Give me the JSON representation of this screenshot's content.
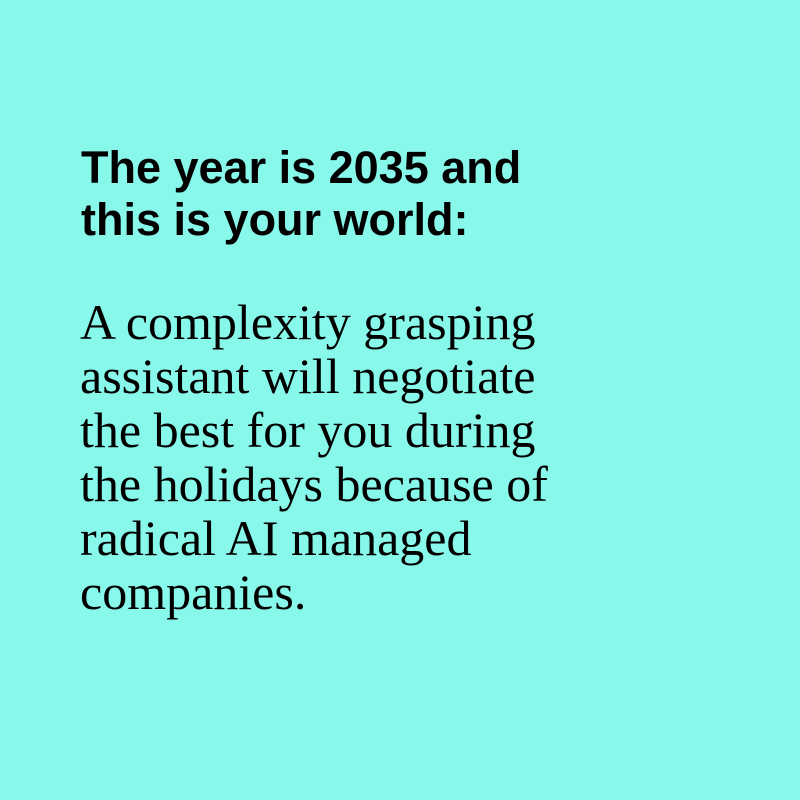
{
  "headline": {
    "lines": [
      "The year is 2035 and",
      "this is your world:"
    ]
  },
  "body": {
    "lines": [
      "A complexity grasping",
      "assistant will negotiate",
      "the best for you during",
      "the holidays because of",
      "radical AI managed",
      "companies."
    ]
  },
  "colors": {
    "background": "#87f8ea",
    "text": "#000000"
  }
}
